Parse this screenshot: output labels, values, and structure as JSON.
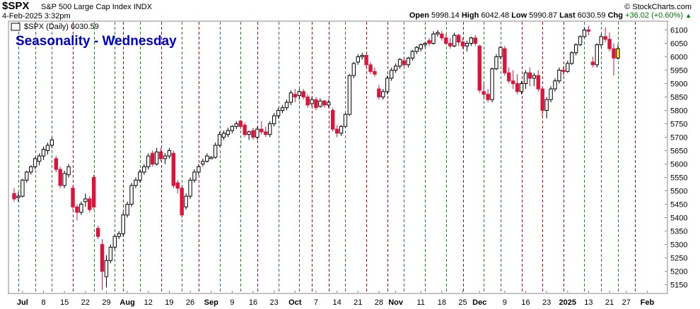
{
  "header": {
    "symbol": "$SPX",
    "name": "S&P 500 Large Cap Index",
    "exchange": "INDX",
    "date": "4-Feb-2025 3:32pm",
    "copyright": "© StockCharts.com",
    "open_label": "Open",
    "open": "5998.14",
    "high_label": "High",
    "high": "6042.48",
    "low_label": "Low",
    "low": "5990.87",
    "last_label": "Last",
    "last": "6030.59",
    "chg_label": "Chg",
    "chg": "+36.02 (+0.60%)",
    "series_label": "$SPX (Daily) 6030.59",
    "overlay_title": "Seasonality - Wednesday"
  },
  "colors": {
    "up": "#ffffff",
    "down": "#dc143c",
    "neutral": "#000000",
    "highlight": "#f2e830",
    "green_line": "#1a8a1a",
    "red_line": "#cc0000",
    "title": "#0000cc"
  },
  "icons": {
    "up_arrow": "up-arrow-icon"
  },
  "chart_data": {
    "type": "candlestick",
    "title": "Seasonality - Wednesday",
    "ylim": [
      5120,
      6130
    ],
    "y_ticks": [
      5150,
      5200,
      5250,
      5300,
      5350,
      5400,
      5450,
      5500,
      5550,
      5600,
      5650,
      5700,
      5750,
      5800,
      5850,
      5900,
      5950,
      6000,
      6050,
      6100
    ],
    "x_labels": [
      {
        "i": 2,
        "label": "Jul"
      },
      {
        "i": 7,
        "label": "8"
      },
      {
        "i": 12,
        "label": "15"
      },
      {
        "i": 17,
        "label": "22"
      },
      {
        "i": 22,
        "label": "29"
      },
      {
        "i": 27,
        "label": "Aug"
      },
      {
        "i": 32,
        "label": "12"
      },
      {
        "i": 37,
        "label": "19"
      },
      {
        "i": 42,
        "label": "26"
      },
      {
        "i": 47,
        "label": "Sep"
      },
      {
        "i": 52,
        "label": "9"
      },
      {
        "i": 57,
        "label": "16"
      },
      {
        "i": 62,
        "label": "23"
      },
      {
        "i": 67,
        "label": "Oct"
      },
      {
        "i": 72,
        "label": "7"
      },
      {
        "i": 77,
        "label": "14"
      },
      {
        "i": 82,
        "label": "21"
      },
      {
        "i": 87,
        "label": "28"
      },
      {
        "i": 91,
        "label": "Nov"
      },
      {
        "i": 97,
        "label": "11"
      },
      {
        "i": 102,
        "label": "18"
      },
      {
        "i": 107,
        "label": "25"
      },
      {
        "i": 111,
        "label": "Dec"
      },
      {
        "i": 117,
        "label": "9"
      },
      {
        "i": 122,
        "label": "16"
      },
      {
        "i": 127,
        "label": "23"
      },
      {
        "i": 132,
        "label": "2025"
      },
      {
        "i": 137,
        "label": "13"
      },
      {
        "i": 142,
        "label": "21"
      },
      {
        "i": 146,
        "label": "27"
      },
      {
        "i": 151,
        "label": "Feb"
      }
    ],
    "vlines": [
      {
        "i": 1,
        "c": "g"
      },
      {
        "i": 5,
        "c": "g"
      },
      {
        "i": 9,
        "c": "g"
      },
      {
        "i": 14,
        "c": "r"
      },
      {
        "i": 19,
        "c": "g"
      },
      {
        "i": 24,
        "c": "g"
      },
      {
        "i": 26,
        "c": "r"
      },
      {
        "i": 30,
        "c": "g"
      },
      {
        "i": 35,
        "c": "r"
      },
      {
        "i": 40,
        "c": "g"
      },
      {
        "i": 44,
        "c": "r"
      },
      {
        "i": 49,
        "c": "g"
      },
      {
        "i": 54,
        "c": "g"
      },
      {
        "i": 58,
        "c": "r"
      },
      {
        "i": 63,
        "c": "g"
      },
      {
        "i": 68,
        "c": "g"
      },
      {
        "i": 71,
        "c": "r"
      },
      {
        "i": 75,
        "c": "r"
      },
      {
        "i": 79,
        "c": "g"
      },
      {
        "i": 84,
        "c": "r"
      },
      {
        "i": 89,
        "c": "r"
      },
      {
        "i": 93,
        "c": "g"
      },
      {
        "i": 98,
        "c": "g"
      },
      {
        "i": 103,
        "c": "g"
      },
      {
        "i": 107,
        "c": "r"
      },
      {
        "i": 112,
        "c": "g"
      },
      {
        "i": 116,
        "c": "g"
      },
      {
        "i": 121,
        "c": "r"
      },
      {
        "i": 126,
        "c": "r"
      },
      {
        "i": 131,
        "c": "r"
      },
      {
        "i": 136,
        "c": "g"
      },
      {
        "i": 140,
        "c": "g"
      },
      {
        "i": 144,
        "c": "g"
      },
      {
        "i": 148,
        "c": "r"
      }
    ],
    "ohlc": [
      [
        5490,
        5510,
        5460,
        5470
      ],
      [
        5475,
        5495,
        5460,
        5480
      ],
      [
        5480,
        5545,
        5475,
        5540
      ],
      [
        5540,
        5575,
        5530,
        5570
      ],
      [
        5570,
        5595,
        5560,
        5590
      ],
      [
        5590,
        5625,
        5580,
        5620
      ],
      [
        5610,
        5640,
        5595,
        5630
      ],
      [
        5630,
        5665,
        5615,
        5655
      ],
      [
        5650,
        5680,
        5635,
        5670
      ],
      [
        5670,
        5700,
        5660,
        5690
      ],
      [
        5620,
        5630,
        5570,
        5580
      ],
      [
        5580,
        5590,
        5510,
        5520
      ],
      [
        5520,
        5575,
        5510,
        5565
      ],
      [
        5560,
        5600,
        5550,
        5590
      ],
      [
        5510,
        5520,
        5430,
        5440
      ],
      [
        5440,
        5450,
        5390,
        5420
      ],
      [
        5420,
        5460,
        5410,
        5450
      ],
      [
        5460,
        5490,
        5440,
        5470
      ],
      [
        5470,
        5480,
        5420,
        5430
      ],
      [
        5550,
        5560,
        5430,
        5440
      ],
      [
        5360,
        5370,
        5320,
        5330
      ],
      [
        5300,
        5320,
        5130,
        5200
      ],
      [
        5180,
        5260,
        5140,
        5240
      ],
      [
        5240,
        5300,
        5230,
        5290
      ],
      [
        5290,
        5340,
        5280,
        5330
      ],
      [
        5330,
        5350,
        5320,
        5340
      ],
      [
        5340,
        5420,
        5330,
        5410
      ],
      [
        5410,
        5460,
        5400,
        5450
      ],
      [
        5450,
        5530,
        5440,
        5520
      ],
      [
        5520,
        5550,
        5510,
        5540
      ],
      [
        5540,
        5580,
        5530,
        5570
      ],
      [
        5570,
        5600,
        5560,
        5590
      ],
      [
        5590,
        5640,
        5580,
        5630
      ],
      [
        5640,
        5650,
        5590,
        5600
      ],
      [
        5600,
        5660,
        5595,
        5645
      ],
      [
        5645,
        5660,
        5610,
        5620
      ],
      [
        5620,
        5640,
        5600,
        5630
      ],
      [
        5630,
        5660,
        5620,
        5650
      ],
      [
        5640,
        5650,
        5510,
        5520
      ],
      [
        5530,
        5540,
        5490,
        5510
      ],
      [
        5510,
        5520,
        5400,
        5410
      ],
      [
        5440,
        5490,
        5430,
        5480
      ],
      [
        5480,
        5550,
        5470,
        5540
      ],
      [
        5540,
        5580,
        5530,
        5570
      ],
      [
        5570,
        5600,
        5560,
        5590
      ],
      [
        5600,
        5620,
        5590,
        5610
      ],
      [
        5610,
        5640,
        5605,
        5630
      ],
      [
        5620,
        5630,
        5620,
        5625
      ],
      [
        5625,
        5680,
        5620,
        5670
      ],
      [
        5670,
        5720,
        5665,
        5710
      ],
      [
        5700,
        5725,
        5690,
        5715
      ],
      [
        5710,
        5735,
        5700,
        5725
      ],
      [
        5725,
        5745,
        5715,
        5740
      ],
      [
        5740,
        5760,
        5730,
        5750
      ],
      [
        5760,
        5765,
        5730,
        5740
      ],
      [
        5745,
        5755,
        5700,
        5710
      ],
      [
        5710,
        5725,
        5690,
        5720
      ],
      [
        5725,
        5735,
        5690,
        5700
      ],
      [
        5700,
        5740,
        5690,
        5730
      ],
      [
        5730,
        5760,
        5710,
        5720
      ],
      [
        5720,
        5740,
        5700,
        5710
      ],
      [
        5710,
        5760,
        5700,
        5750
      ],
      [
        5750,
        5790,
        5740,
        5780
      ],
      [
        5780,
        5810,
        5770,
        5800
      ],
      [
        5800,
        5820,
        5790,
        5810
      ],
      [
        5810,
        5840,
        5800,
        5830
      ],
      [
        5830,
        5875,
        5820,
        5865
      ],
      [
        5860,
        5880,
        5830,
        5850
      ],
      [
        5855,
        5880,
        5840,
        5870
      ],
      [
        5870,
        5880,
        5840,
        5850
      ],
      [
        5850,
        5860,
        5810,
        5820
      ],
      [
        5825,
        5850,
        5815,
        5840
      ],
      [
        5840,
        5850,
        5800,
        5810
      ],
      [
        5815,
        5845,
        5810,
        5835
      ],
      [
        5835,
        5840,
        5810,
        5820
      ],
      [
        5820,
        5840,
        5810,
        5830
      ],
      [
        5800,
        5810,
        5720,
        5730
      ],
      [
        5730,
        5745,
        5700,
        5715
      ],
      [
        5715,
        5745,
        5705,
        5740
      ],
      [
        5740,
        5790,
        5735,
        5785
      ],
      [
        5785,
        5935,
        5780,
        5930
      ],
      [
        5930,
        5980,
        5920,
        5975
      ],
      [
        5980,
        6010,
        5970,
        6000
      ],
      [
        6000,
        6015,
        5990,
        6005
      ],
      [
        6005,
        6010,
        5960,
        5970
      ],
      [
        5970,
        5980,
        5935,
        5945
      ],
      [
        5945,
        5960,
        5925,
        5935
      ],
      [
        5880,
        5895,
        5840,
        5850
      ],
      [
        5850,
        5880,
        5840,
        5870
      ],
      [
        5870,
        5930,
        5860,
        5920
      ],
      [
        5920,
        5960,
        5910,
        5950
      ],
      [
        5950,
        5975,
        5940,
        5965
      ],
      [
        5965,
        5995,
        5955,
        5990
      ],
      [
        5985,
        6000,
        5960,
        5970
      ],
      [
        5970,
        6000,
        5960,
        5995
      ],
      [
        5995,
        6025,
        5985,
        6020
      ],
      [
        6020,
        6040,
        6010,
        6035
      ],
      [
        6030,
        6050,
        6020,
        6045
      ],
      [
        6045,
        6055,
        6035,
        6050
      ],
      [
        6060,
        6070,
        6040,
        6050
      ],
      [
        6050,
        6095,
        6045,
        6085
      ],
      [
        6085,
        6100,
        6075,
        6090
      ],
      [
        6085,
        6095,
        6060,
        6070
      ],
      [
        6070,
        6085,
        6045,
        6050
      ],
      [
        6050,
        6070,
        6030,
        6040
      ],
      [
        6040,
        6090,
        6035,
        6080
      ],
      [
        6080,
        6085,
        6040,
        6055
      ],
      [
        6055,
        6070,
        6030,
        6040
      ],
      [
        6040,
        6060,
        6020,
        6050
      ],
      [
        6050,
        6075,
        6040,
        6070
      ],
      [
        6070,
        6080,
        6040,
        6050
      ],
      [
        6040,
        6045,
        5865,
        5875
      ],
      [
        5870,
        5900,
        5840,
        5860
      ],
      [
        5860,
        5880,
        5830,
        5840
      ],
      [
        5840,
        5960,
        5830,
        5955
      ],
      [
        5955,
        6010,
        5950,
        6000
      ],
      [
        6000,
        6040,
        5990,
        6035
      ],
      [
        6030,
        6040,
        5930,
        5940
      ],
      [
        5940,
        5960,
        5900,
        5910
      ],
      [
        5910,
        5950,
        5880,
        5900
      ],
      [
        5900,
        5935,
        5860,
        5870
      ],
      [
        5870,
        5910,
        5860,
        5900
      ],
      [
        5900,
        5950,
        5880,
        5940
      ],
      [
        5940,
        5960,
        5890,
        5920
      ],
      [
        5920,
        5940,
        5890,
        5930
      ],
      [
        5930,
        5950,
        5870,
        5880
      ],
      [
        5880,
        5890,
        5780,
        5800
      ],
      [
        5800,
        5850,
        5770,
        5840
      ],
      [
        5840,
        5890,
        5830,
        5880
      ],
      [
        5880,
        5920,
        5870,
        5910
      ],
      [
        5910,
        5960,
        5900,
        5950
      ],
      [
        5950,
        5965,
        5930,
        5945
      ],
      [
        5945,
        5985,
        5940,
        5975
      ],
      [
        5975,
        6020,
        5970,
        6015
      ],
      [
        6015,
        6050,
        6005,
        6045
      ],
      [
        6045,
        6080,
        6040,
        6075
      ],
      [
        6075,
        6110,
        6070,
        6100
      ],
      [
        6100,
        6115,
        6080,
        6095
      ],
      [
        5980,
        6000,
        5960,
        5970
      ],
      [
        5970,
        6050,
        5960,
        6045
      ],
      [
        6045,
        6085,
        6035,
        6075
      ],
      [
        6075,
        6110,
        6055,
        6065
      ],
      [
        6065,
        6090,
        6020,
        6030
      ],
      [
        6030,
        6050,
        5930,
        5995
      ],
      [
        5995,
        6045,
        5990,
        6030
      ]
    ]
  }
}
